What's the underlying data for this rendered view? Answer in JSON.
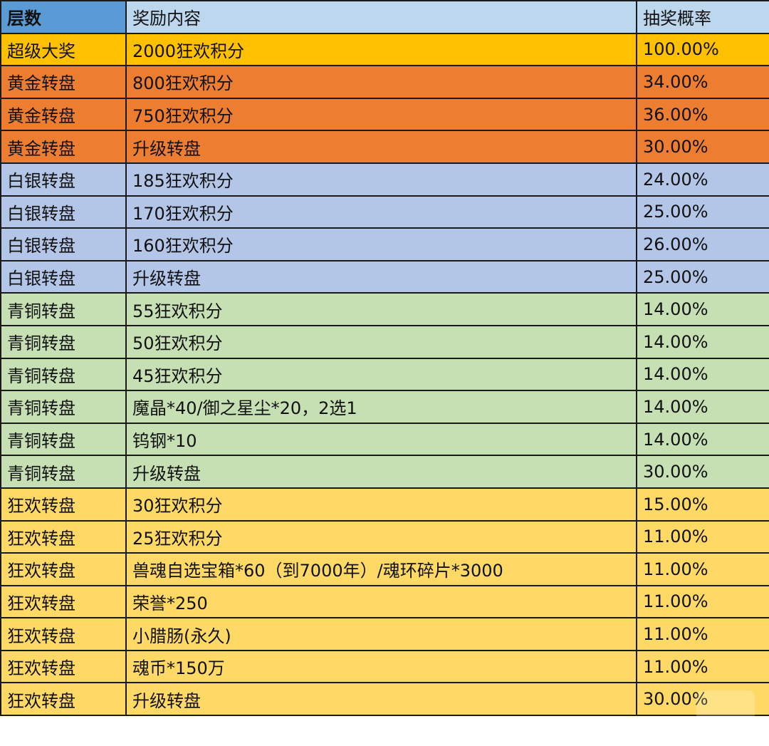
{
  "header": [
    "层数",
    "奖励内容",
    "抽奖概率"
  ],
  "tier_colors": {
    "超级大奖": "#ffc000",
    "黄金转盘": "#ed7d31",
    "白银转盘": "#b4c6e7",
    "青铜转盘": "#c6e0b4",
    "狂欢转盘": "#ffd966"
  },
  "rows": [
    {
      "tier": "超级大奖",
      "reward": "2000狂欢积分",
      "prob": "100.00%"
    },
    {
      "tier": "黄金转盘",
      "reward": "800狂欢积分",
      "prob": "34.00%"
    },
    {
      "tier": "黄金转盘",
      "reward": "750狂欢积分",
      "prob": "36.00%"
    },
    {
      "tier": "黄金转盘",
      "reward": "升级转盘",
      "prob": "30.00%"
    },
    {
      "tier": "白银转盘",
      "reward": "185狂欢积分",
      "prob": "24.00%"
    },
    {
      "tier": "白银转盘",
      "reward": "170狂欢积分",
      "prob": "25.00%"
    },
    {
      "tier": "白银转盘",
      "reward": "160狂欢积分",
      "prob": "26.00%"
    },
    {
      "tier": "白银转盘",
      "reward": "升级转盘",
      "prob": "25.00%"
    },
    {
      "tier": "青铜转盘",
      "reward": "55狂欢积分",
      "prob": "14.00%"
    },
    {
      "tier": "青铜转盘",
      "reward": "50狂欢积分",
      "prob": "14.00%"
    },
    {
      "tier": "青铜转盘",
      "reward": "45狂欢积分",
      "prob": "14.00%"
    },
    {
      "tier": "青铜转盘",
      "reward": "魔晶*40/御之星尘*20，2选1",
      "prob": "14.00%"
    },
    {
      "tier": "青铜转盘",
      "reward": "钨钢*10",
      "prob": "14.00%"
    },
    {
      "tier": "青铜转盘",
      "reward": "升级转盘",
      "prob": "30.00%"
    },
    {
      "tier": "狂欢转盘",
      "reward": "30狂欢积分",
      "prob": "15.00%"
    },
    {
      "tier": "狂欢转盘",
      "reward": "25狂欢积分",
      "prob": "11.00%"
    },
    {
      "tier": "狂欢转盘",
      "reward": "兽魂自选宝箱*60（到7000年）/魂环碎片*3000",
      "prob": "11.00%"
    },
    {
      "tier": "狂欢转盘",
      "reward": "荣誉*250",
      "prob": "11.00%"
    },
    {
      "tier": "狂欢转盘",
      "reward": "小腊肠(永久)",
      "prob": "11.00%"
    },
    {
      "tier": "狂欢转盘",
      "reward": "魂币*150万",
      "prob": "11.00%"
    },
    {
      "tier": "狂欢转盘",
      "reward": "升级转盘",
      "prob": "30.00%"
    }
  ],
  "watermark": "PCMS.CN"
}
